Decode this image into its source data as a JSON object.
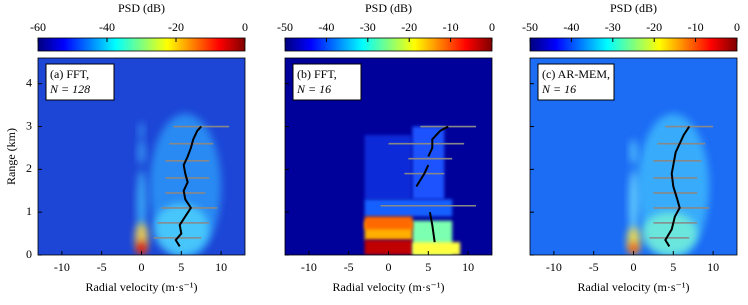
{
  "chart_data": [
    {
      "type": "heatmap",
      "panel_label": "(a) FFT,",
      "panel_sublabel": "N = 128",
      "colorbar_label": "PSD (dB)",
      "clim": [
        -60,
        0
      ],
      "cticks": [
        -60,
        -40,
        -20,
        0
      ],
      "colormap": "jet",
      "x_label": "Radial velocity (m·s⁻¹)",
      "y_label": "Range (km)",
      "show_ytick_labels": true,
      "xlim": [
        -13,
        13
      ],
      "xticks": [
        -10,
        -5,
        0,
        5,
        10
      ],
      "ylim": [
        0,
        4.6
      ],
      "yticks": [
        0,
        1,
        2,
        3,
        4
      ],
      "profile": {
        "color": "#000000",
        "velocity": [
          4.8,
          4.3,
          5.0,
          4.8,
          5.5,
          6.2,
          5.5,
          5.3,
          5.8,
          5.5,
          5.3,
          5.8,
          6.2,
          6.5,
          7.0,
          7.5
        ],
        "range": [
          0.2,
          0.35,
          0.5,
          0.7,
          0.9,
          1.1,
          1.3,
          1.5,
          1.7,
          1.9,
          2.1,
          2.3,
          2.5,
          2.7,
          2.9,
          3.0
        ]
      },
      "spread": {
        "color": "#888888",
        "range": [
          0.4,
          0.75,
          1.1,
          1.45,
          1.8,
          2.2,
          2.6,
          3.0
        ],
        "low": [
          1.5,
          2.0,
          2.5,
          3.0,
          3.0,
          3.0,
          3.5,
          4.0
        ],
        "high": [
          7.5,
          8.5,
          9.5,
          8.0,
          8.5,
          8.5,
          9.0,
          11.0
        ]
      }
    },
    {
      "type": "heatmap",
      "panel_label": "(b) FFT,",
      "panel_sublabel": "N = 16",
      "colorbar_label": "PSD (dB)",
      "clim": [
        -50,
        0
      ],
      "cticks": [
        -50,
        -40,
        -30,
        -20,
        -10,
        0
      ],
      "colormap": "jet",
      "x_label": "Radial velocity (m·s⁻¹)",
      "show_ytick_labels": false,
      "xlim": [
        -13,
        13
      ],
      "xticks": [
        -10,
        -5,
        0,
        5,
        10
      ],
      "ylim": [
        0,
        4.6
      ],
      "yticks": [
        0,
        1,
        2,
        3,
        4
      ],
      "profile": {
        "color": "#000000",
        "velocity": [
          5.8,
          5.5,
          5.2,
          null,
          3.5,
          4.5,
          5.0,
          null,
          5.0,
          5.5,
          5.5,
          6.0,
          6.5,
          7.5
        ],
        "range": [
          0.3,
          0.7,
          1.0,
          null,
          1.6,
          1.9,
          2.1,
          null,
          2.3,
          2.5,
          2.7,
          2.8,
          2.9,
          3.0
        ]
      },
      "spread": {
        "color": "#888888",
        "range": [
          1.15,
          1.9,
          2.25,
          2.6,
          3.0
        ],
        "low": [
          -1.0,
          2.0,
          2.5,
          0.0,
          4.0
        ],
        "high": [
          11.0,
          7.0,
          8.0,
          9.5,
          11.0
        ]
      }
    },
    {
      "type": "heatmap",
      "panel_label": "(c) AR-MEM,",
      "panel_sublabel": "N = 16",
      "colorbar_label": "PSD (dB)",
      "clim": [
        -50,
        0
      ],
      "cticks": [
        -50,
        -40,
        -30,
        -20,
        -10,
        0
      ],
      "colormap": "jet",
      "x_label": "Radial velocity (m·s⁻¹)",
      "show_ytick_labels": false,
      "xlim": [
        -13,
        13
      ],
      "xticks": [
        -10,
        -5,
        0,
        5,
        10
      ],
      "ylim": [
        0,
        4.6
      ],
      "yticks": [
        0,
        1,
        2,
        3,
        4
      ],
      "profile": {
        "color": "#000000",
        "velocity": [
          4.5,
          4.0,
          4.8,
          5.2,
          5.8,
          5.5,
          5.0,
          4.8,
          5.0,
          5.3,
          5.8,
          6.3,
          7.0
        ],
        "range": [
          0.2,
          0.35,
          0.6,
          0.9,
          1.1,
          1.3,
          1.6,
          1.9,
          2.1,
          2.4,
          2.6,
          2.8,
          3.0
        ]
      },
      "spread": {
        "color": "#888888",
        "range": [
          0.4,
          0.75,
          1.1,
          1.45,
          1.8,
          2.2,
          2.6,
          3.0
        ],
        "low": [
          2.0,
          2.5,
          2.5,
          2.5,
          2.5,
          2.5,
          3.0,
          4.0
        ],
        "high": [
          7.0,
          8.0,
          9.5,
          8.0,
          8.0,
          8.5,
          9.0,
          10.0
        ]
      }
    }
  ]
}
